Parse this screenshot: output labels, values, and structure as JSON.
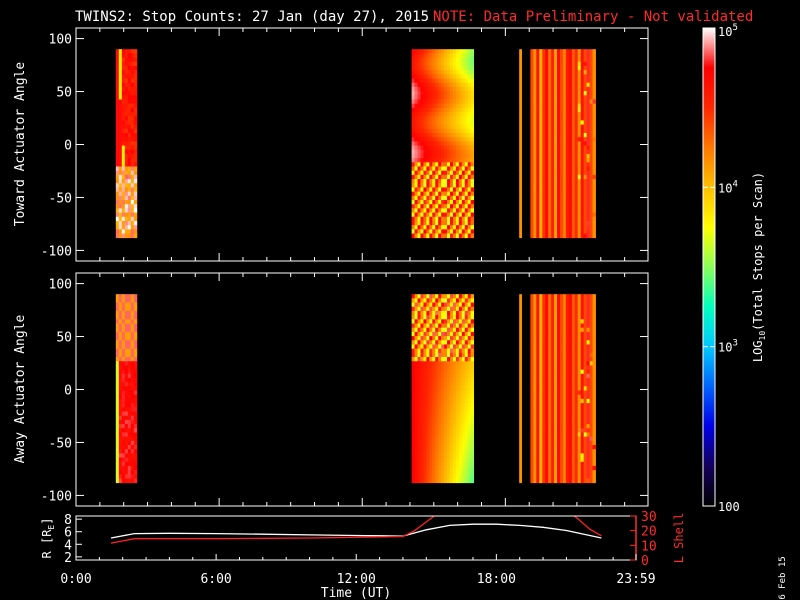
{
  "title": {
    "main": "TWINS2: Stop Counts: 27 Jan (day  27), 2015",
    "note": "NOTE: Data Preliminary - Not validated",
    "note_color": "#ff2a2a"
  },
  "side_date": "6 Feb 15",
  "chart_data": [
    {
      "type": "heatmap",
      "panel": "toward",
      "ylabel": "Toward Actuator Angle",
      "ylim": [
        -110,
        110
      ],
      "y_ticks": [
        -100,
        -50,
        0,
        50,
        100
      ],
      "y_tick_labels": [
        "-100",
        "-50",
        "0",
        "50",
        "100"
      ],
      "y_data_range": [
        -88,
        90
      ],
      "x_range_hours": [
        0,
        23.98
      ],
      "blocks": [
        {
          "x0": 1.67,
          "x1": 2.55,
          "style": "early-toward"
        },
        {
          "x0": 14.07,
          "x1": 16.67,
          "style": "mid-toward"
        },
        {
          "x0": 18.58,
          "x1": 18.68,
          "style": "strip"
        },
        {
          "x0": 19.05,
          "x1": 21.78,
          "style": "late"
        }
      ]
    },
    {
      "type": "heatmap",
      "panel": "away",
      "ylabel": "Away Actuator Angle",
      "ylim": [
        -110,
        110
      ],
      "y_ticks": [
        -100,
        -50,
        0,
        50,
        100
      ],
      "y_tick_labels": [
        "-100",
        "-50",
        "0",
        "50",
        "100"
      ],
      "y_data_range": [
        -88,
        90
      ],
      "x_range_hours": [
        0,
        23.98
      ],
      "blocks": [
        {
          "x0": 1.67,
          "x1": 2.55,
          "style": "early-away"
        },
        {
          "x0": 14.07,
          "x1": 16.67,
          "style": "mid-away"
        },
        {
          "x0": 18.58,
          "x1": 18.68,
          "style": "strip"
        },
        {
          "x0": 19.05,
          "x1": 21.78,
          "style": "late"
        }
      ]
    },
    {
      "type": "line",
      "panel": "orbit",
      "ylabel_left": "R [R",
      "ylabel_left_sub": "E",
      "ylabel_left_end": "]",
      "ylabel_right": "L Shell",
      "left_ylim": [
        1.5,
        8.5
      ],
      "left_ticks": [
        2,
        4,
        6,
        8
      ],
      "right_ylim": [
        0,
        30
      ],
      "right_ticks": [
        0,
        10,
        20,
        30
      ],
      "xlabel": "Time (UT)",
      "x_ticks": [
        0,
        6,
        12,
        18,
        23.98
      ],
      "x_tick_labels": [
        "0:00",
        "6:00",
        "12:00",
        "18:00",
        "23:59"
      ],
      "series": [
        {
          "axis": "left",
          "color": "#ffffff",
          "x": [
            1.5,
            2.5,
            4,
            6,
            8,
            10,
            12,
            14,
            15,
            16,
            17,
            18,
            19,
            20,
            21,
            22,
            22.5
          ],
          "y": [
            5.0,
            5.7,
            5.75,
            5.7,
            5.6,
            5.5,
            5.4,
            5.3,
            6.3,
            7.0,
            7.2,
            7.2,
            7.0,
            6.7,
            6.2,
            5.4,
            5.0
          ]
        },
        {
          "axis": "right",
          "color": "#ff2020",
          "x": [
            1.5,
            2.5,
            6,
            10,
            14,
            14.5,
            15,
            15.5,
            16
          ],
          "y": [
            11.5,
            14.5,
            14.5,
            15.0,
            16.0,
            20.0,
            26.0,
            32.0,
            38.0
          ]
        },
        {
          "axis": "right",
          "color": "#ff2020",
          "x": [
            21.0,
            21.5,
            22.0,
            22.5
          ],
          "y": [
            34.0,
            28.0,
            21.0,
            16.5
          ]
        }
      ]
    }
  ],
  "colorbar": {
    "label_prefix": "LOG",
    "label_sub": "10",
    "label_suffix": "(Total Stops per Scan)",
    "range_log": [
      2,
      5
    ],
    "ticks": [
      {
        "value": 5,
        "base": "10",
        "exp": "5"
      },
      {
        "value": 4,
        "base": "10",
        "exp": "4"
      },
      {
        "value": 3,
        "base": "10",
        "exp": "3"
      },
      {
        "value": 2,
        "label": "100"
      }
    ],
    "colors": [
      "#000000",
      "#14005a",
      "#0000e6",
      "#0064ff",
      "#00c8ff",
      "#00ffbe",
      "#8cff5a",
      "#ffff00",
      "#ffbe00",
      "#ff7800",
      "#ff2800",
      "#ff0000",
      "#ffffff"
    ]
  }
}
